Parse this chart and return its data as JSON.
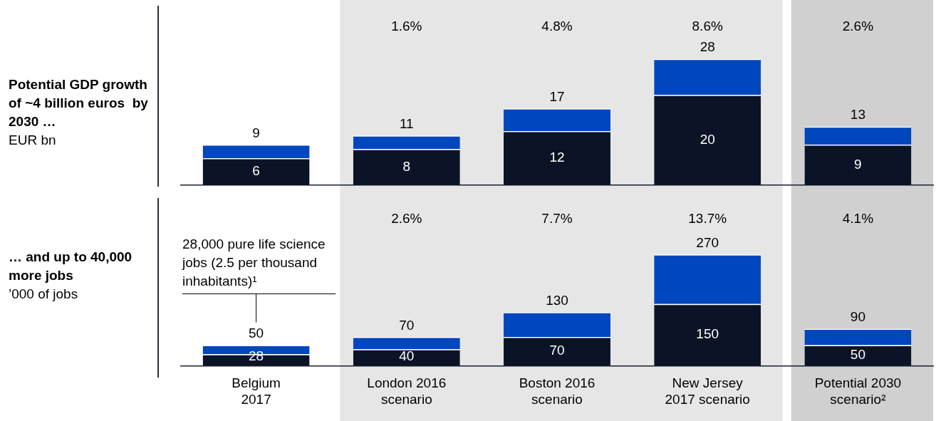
{
  "chart_data": [
    {
      "type": "bar",
      "title": "Potential GDP growth of ~4 billion euros  by 2030 …",
      "ylabel": "EUR bn",
      "stacked": true,
      "tick_labels": false,
      "grid": false,
      "legend": false,
      "categories": [
        "Belgium 2017",
        "London 2016 scenario",
        "Boston 2016 scenario",
        "New Jersey 2017 scenario",
        "Potential 2030 scenario²"
      ],
      "series": [
        {
          "color": "#0b1426",
          "values": [
            6,
            8,
            12,
            20,
            9
          ],
          "value_labels": [
            "6",
            "8",
            "12",
            "20",
            "9"
          ]
        },
        {
          "color": "#0046bd",
          "values": [
            3,
            3,
            5,
            8,
            4
          ]
        }
      ],
      "totals": [
        "9",
        "11",
        "17",
        "28",
        "13"
      ],
      "bands": [
        {
          "axis": "x",
          "from": "London 2016 scenario",
          "to": "New Jersey 2017 scenario",
          "color": "#e6e6e6"
        },
        {
          "axis": "x",
          "from": "Potential 2030 scenario²",
          "to": "Potential 2030 scenario²",
          "color": "#d0d0d0"
        }
      ],
      "annotations": [
        "1.6%",
        "4.8%",
        "8.6%",
        "2.6%"
      ]
    },
    {
      "type": "bar",
      "title": "… and up to 40,000 more jobs",
      "ylabel": "’000 of jobs",
      "stacked": true,
      "grid": false,
      "legend": false,
      "categories": [
        "Belgium 2017",
        "London 2016 scenario",
        "Boston 2016 scenario",
        "New Jersey 2017 scenario",
        "Potential 2030 scenario²"
      ],
      "series": [
        {
          "color": "#0b1426",
          "values": [
            28,
            40,
            70,
            150,
            50
          ],
          "value_labels": [
            "28",
            "40",
            "70",
            "150",
            "50"
          ]
        },
        {
          "color": "#0046bd",
          "values": [
            22,
            30,
            60,
            120,
            40
          ]
        }
      ],
      "totals": [
        "50",
        "70",
        "130",
        "270",
        "90"
      ],
      "bands": [
        {
          "axis": "x",
          "from": "London 2016 scenario",
          "to": "New Jersey 2017 scenario",
          "color": "#e6e6e6"
        },
        {
          "axis": "x",
          "from": "Potential 2030 scenario²",
          "to": "Potential 2030 scenario²",
          "color": "#d0d0d0"
        }
      ],
      "annotations": [
        "2.6%",
        "7.7%",
        "13.7%",
        "4.1%",
        "28,000 pure life science jobs (2.5 per thousand inhabitants)¹"
      ]
    }
  ]
}
